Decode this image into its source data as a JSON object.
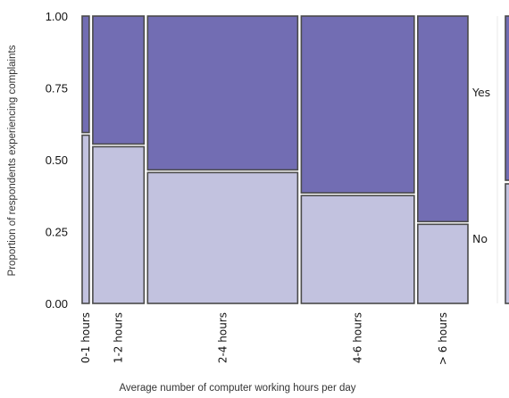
{
  "chart_data": {
    "type": "mosaic",
    "title": "",
    "xlabel": "Average number of computer working hours per day",
    "ylabel": "Proportion of respondents experiencing complaints",
    "ylim": [
      0,
      1
    ],
    "yticks": [
      "0.00",
      "0.25",
      "0.50",
      "0.75",
      "1.00"
    ],
    "categories": [
      "0-1 hours",
      "1-2 hours",
      "2-4 hours",
      "4-6 hours",
      "> 6 hours"
    ],
    "category_shares": [
      0.019,
      0.138,
      0.404,
      0.304,
      0.135
    ],
    "series": [
      {
        "name": "No",
        "color": "#c2c2df",
        "values": [
          0.59,
          0.55,
          0.46,
          0.38,
          0.28
        ]
      },
      {
        "name": "Yes",
        "color": "#726db3",
        "values": [
          0.41,
          0.45,
          0.54,
          0.62,
          0.72
        ]
      }
    ],
    "response_labels": {
      "yes": "Yes",
      "no": "No"
    },
    "grid": false,
    "legend": "none"
  }
}
